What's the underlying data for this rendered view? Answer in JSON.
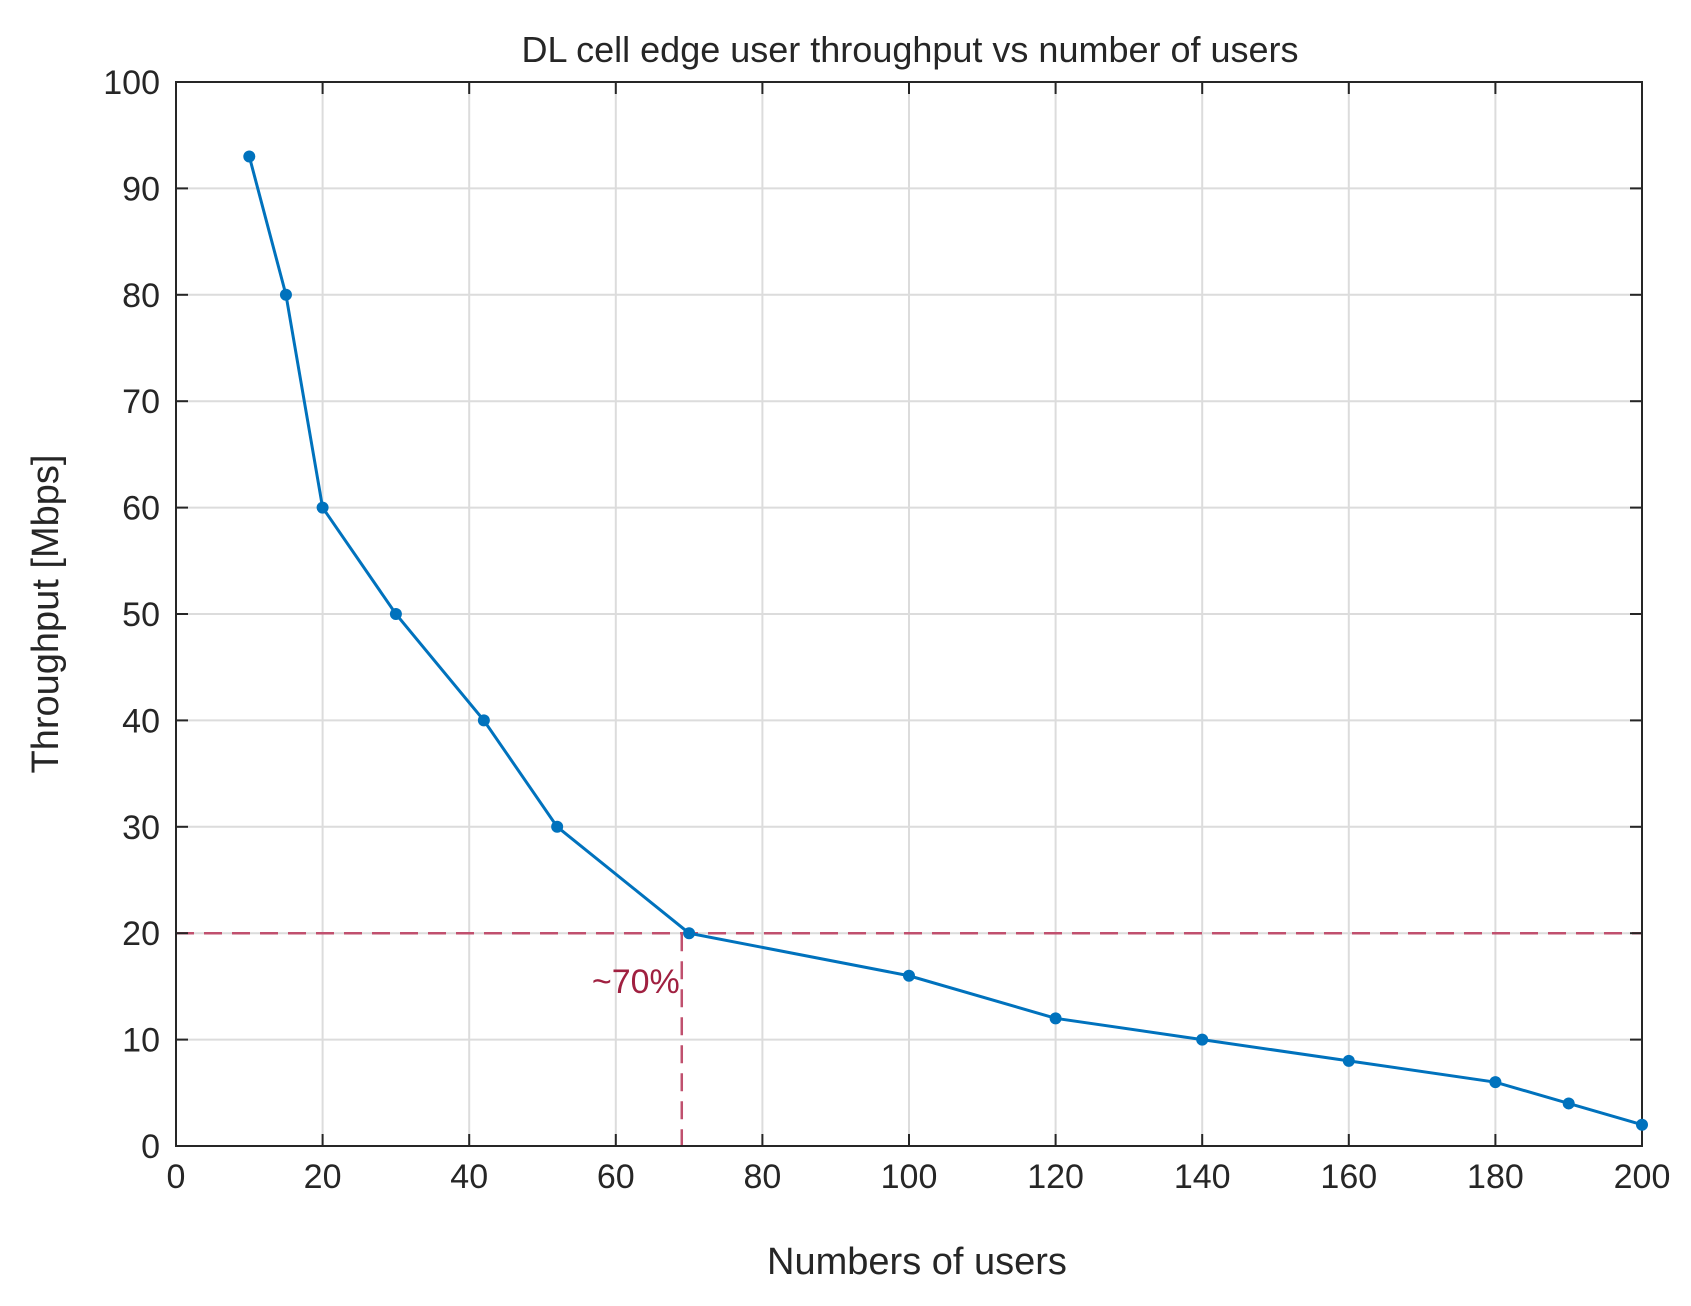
{
  "chart_data": {
    "type": "line",
    "title": "DL cell edge user throughput vs number of users",
    "xlabel": "Numbers of users",
    "ylabel": "Throughput [Mbps]",
    "xlim": [
      0,
      200
    ],
    "ylim": [
      0,
      100
    ],
    "xticks": [
      0,
      20,
      40,
      60,
      80,
      100,
      120,
      140,
      160,
      180,
      200
    ],
    "yticks": [
      0,
      10,
      20,
      30,
      40,
      50,
      60,
      70,
      80,
      90,
      100
    ],
    "grid": true,
    "series": [
      {
        "name": "throughput",
        "color": "#0072bd",
        "x": [
          10,
          15,
          20,
          30,
          42,
          52,
          70,
          100,
          120,
          140,
          160,
          180,
          190,
          200
        ],
        "y": [
          93,
          80,
          60,
          50,
          40,
          30,
          20,
          16,
          12,
          10,
          8,
          6,
          4,
          2
        ]
      }
    ],
    "reference_lines": {
      "color": "#c0506e",
      "horizontal_y": 20,
      "vertical_x": 69
    },
    "annotation": {
      "text": "~70%",
      "x": 69,
      "y": 15.5,
      "color": "#a02040"
    }
  }
}
